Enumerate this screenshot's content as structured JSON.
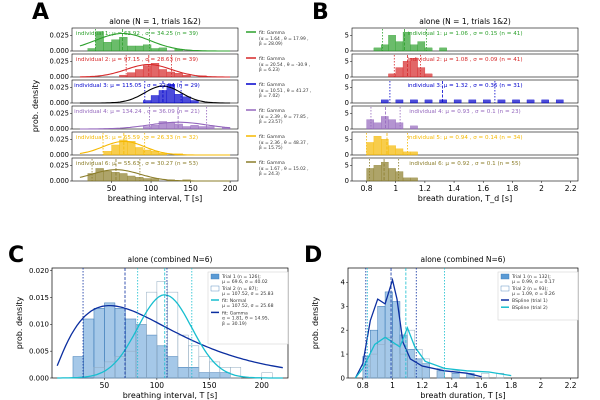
{
  "chart_data": [
    {
      "id": "A",
      "panel_letter": "A",
      "type": "bar",
      "title": "alone (N = 1, trials 1&2)",
      "xlabel": "breathing interval, T [s]",
      "ylabel": "prob. density",
      "xlim": [
        0,
        210
      ],
      "xticks": [
        50,
        100,
        150,
        200
      ],
      "ylim": [
        0,
        0.035
      ],
      "yticks": [
        0.0,
        0.025
      ],
      "ytick_labels": [
        "0.000",
        "0.025"
      ],
      "rows": [
        {
          "label": "individual 1: μ = 63.92 , σ = 34.25 (n = 39)",
          "color": "#2ca02c",
          "mean": 63.92,
          "sd": 34.25,
          "bins": [
            [
              20,
              0.004
            ],
            [
              30,
              0.031
            ],
            [
              40,
              0.014
            ],
            [
              50,
              0.018
            ],
            [
              60,
              0.022
            ],
            [
              70,
              0.008
            ],
            [
              80,
              0.008
            ],
            [
              90,
              0.01
            ],
            [
              100,
              0.004
            ],
            [
              110,
              0.005
            ],
            [
              130,
              0.003
            ]
          ],
          "fit": {
            "label": "fit: Gamma",
            "params": "(α = 1.64 , θ = 17.99 ,\nβ = 28.09)"
          }
        },
        {
          "label": "individual 2: μ = 97.15 , σ = 28.63 (n = 39)",
          "color": "#d62728",
          "mean": 97.15,
          "sd": 28.63,
          "bins": [
            [
              60,
              0.003
            ],
            [
              70,
              0.007
            ],
            [
              80,
              0.012
            ],
            [
              90,
              0.018
            ],
            [
              100,
              0.022
            ],
            [
              110,
              0.012
            ],
            [
              120,
              0.008
            ],
            [
              130,
              0.006
            ],
            [
              140,
              0.003
            ],
            [
              160,
              0.002
            ]
          ],
          "fit": {
            "label": "fit: Gamma",
            "params": "(α = 20.54 , θ = -30.9 ,\nβ = 6.23)"
          }
        },
        {
          "label": "individual 3: μ = 115.05 , σ = 22.94 (n = 29)",
          "color": "#0000cc",
          "mean": 115.05,
          "sd": 22.94,
          "bins": [
            [
              90,
              0.004
            ],
            [
              100,
              0.012
            ],
            [
              110,
              0.02
            ],
            [
              120,
              0.03
            ],
            [
              130,
              0.014
            ],
            [
              140,
              0.01
            ],
            [
              150,
              0.004
            ]
          ],
          "fit": {
            "label": "fit: Gamma",
            "params": "(α = 10.51 , θ = 41.27 ,\nβ = 7.02)"
          }
        },
        {
          "label": "individual 4: μ = 134.24 , σ = 36.09 (n = 21)",
          "color": "#9467bd",
          "mean": 134.24,
          "sd": 36.09,
          "bins": [
            [
              90,
              0.004
            ],
            [
              100,
              0.006
            ],
            [
              110,
              0.012
            ],
            [
              120,
              0.01
            ],
            [
              130,
              0.008
            ],
            [
              140,
              0.004
            ],
            [
              150,
              0.006
            ],
            [
              160,
              0.004
            ],
            [
              170,
              0.004
            ],
            [
              190,
              0.002
            ]
          ],
          "fit": {
            "label": "fit: Gamma",
            "params": "(α = 2.39 , θ = 77.85 ,\nβ = 23.57)"
          }
        },
        {
          "label": "individual 5: μ = 65.59 , σ = 26.33 (n = 32)",
          "color": "#f5b800",
          "mean": 65.59,
          "sd": 26.33,
          "bins": [
            [
              40,
              0.006
            ],
            [
              50,
              0.016
            ],
            [
              60,
              0.024
            ],
            [
              70,
              0.022
            ],
            [
              80,
              0.012
            ],
            [
              90,
              0.008
            ],
            [
              100,
              0.006
            ],
            [
              110,
              0.003
            ],
            [
              130,
              0.002
            ]
          ],
          "fit": {
            "label": "fit: Gamma",
            "params": "(α = 2.36 , θ = 48.37 ,\nβ = 15.75)"
          }
        },
        {
          "label": "individual 6: μ = 55.63 , σ = 30.27 (n = 53)",
          "color": "#8b7d2a",
          "mean": 55.63,
          "sd": 30.27,
          "bins": [
            [
              20,
              0.012
            ],
            [
              30,
              0.02
            ],
            [
              40,
              0.016
            ],
            [
              50,
              0.014
            ],
            [
              60,
              0.012
            ],
            [
              70,
              0.008
            ],
            [
              80,
              0.006
            ],
            [
              90,
              0.004
            ],
            [
              100,
              0.004
            ],
            [
              120,
              0.002
            ],
            [
              140,
              0.002
            ]
          ],
          "fit": {
            "label": "fit: Gamma",
            "params": "(α = 1.67 , θ = 15.02 ,\nβ = 24.3)"
          }
        }
      ]
    },
    {
      "id": "B",
      "panel_letter": "B",
      "type": "bar",
      "title": "alone (N = 1, trials 1&2)",
      "xlabel": "breath duration, T_d [s]",
      "xlim": [
        0.7,
        2.25
      ],
      "xticks": [
        0.8,
        1.0,
        1.2,
        1.4,
        1.6,
        1.8,
        2.0,
        2.2
      ],
      "ylim": [
        0,
        7
      ],
      "yticks": [
        0,
        5
      ],
      "rows": [
        {
          "label": "individual 1: μ = 1.06 , σ = 0.15 (n = 41)",
          "color": "#2ca02c",
          "mean": 1.06,
          "sd": 0.15,
          "bins": [
            [
              0.85,
              1
            ],
            [
              0.9,
              2
            ],
            [
              0.95,
              5
            ],
            [
              1.0,
              3
            ],
            [
              1.05,
              6
            ],
            [
              1.1,
              2
            ],
            [
              1.15,
              3
            ],
            [
              1.2,
              1
            ],
            [
              1.3,
              1
            ]
          ]
        },
        {
          "label": "individual 2: μ = 1.08 , σ = 0.09 (n = 41)",
          "color": "#d62728",
          "mean": 1.08,
          "sd": 0.09,
          "bins": [
            [
              0.95,
              1
            ],
            [
              1.0,
              3
            ],
            [
              1.05,
              5
            ],
            [
              1.1,
              6
            ],
            [
              1.15,
              3
            ],
            [
              1.2,
              1
            ]
          ]
        },
        {
          "label": "individual 3: μ = 1.32 , σ = 0.36 (n = 31)",
          "color": "#0000cc",
          "mean": 1.32,
          "sd": 0.36,
          "bins": [
            [
              0.9,
              1
            ],
            [
              1.0,
              1
            ],
            [
              1.1,
              1
            ],
            [
              1.2,
              1
            ],
            [
              1.3,
              1
            ],
            [
              1.4,
              1
            ],
            [
              1.5,
              1
            ],
            [
              1.6,
              1
            ],
            [
              1.7,
              1
            ],
            [
              1.8,
              1
            ],
            [
              1.9,
              1
            ],
            [
              2.0,
              1
            ],
            [
              2.1,
              1
            ]
          ]
        },
        {
          "label": "individual 4: μ = 0.93 , σ = 0.1 (n = 23)",
          "color": "#9467bd",
          "mean": 0.93,
          "sd": 0.1,
          "bins": [
            [
              0.8,
              3
            ],
            [
              0.85,
              2
            ],
            [
              0.9,
              4
            ],
            [
              0.95,
              3
            ],
            [
              1.0,
              2
            ],
            [
              1.1,
              1
            ]
          ]
        },
        {
          "label": "individual 5: μ = 0.94 , σ = 0.14 (n = 34)",
          "color": "#f5b800",
          "mean": 0.94,
          "sd": 0.14,
          "bins": [
            [
              0.8,
              4
            ],
            [
              0.85,
              6
            ],
            [
              0.9,
              5
            ],
            [
              0.95,
              3
            ],
            [
              1.0,
              2
            ],
            [
              1.05,
              1
            ],
            [
              1.1,
              1
            ]
          ]
        },
        {
          "label": "individual 6: μ = 0.92 , σ = 0.1 (n = 55)",
          "color": "#8b7d2a",
          "mean": 0.92,
          "sd": 0.1,
          "bins": [
            [
              0.8,
              4
            ],
            [
              0.85,
              5
            ],
            [
              0.9,
              6
            ],
            [
              0.95,
              4
            ],
            [
              1.0,
              3
            ],
            [
              1.05,
              1
            ],
            [
              1.1,
              1
            ]
          ]
        }
      ]
    },
    {
      "id": "C",
      "panel_letter": "C",
      "type": "bar",
      "title": "alone (combined N=6)",
      "xlabel": "breathing interval, T [s]",
      "ylabel": "prob. density",
      "xlim": [
        0,
        225
      ],
      "xticks": [
        50,
        100,
        150,
        200
      ],
      "ylim": [
        0,
        0.0205
      ],
      "yticks": [
        0.0,
        0.005,
        0.01,
        0.015,
        0.02
      ],
      "ytick_labels": [
        "0.000",
        "0.005",
        "0.010",
        "0.015",
        "0.020"
      ],
      "series": [
        {
          "name": "Trial 1",
          "legend": "Trial 1 (n = 126);\nμ = 69.6, σ = 40.02",
          "color": "#5b9bd5",
          "bins": [
            [
              20,
              0.004
            ],
            [
              30,
              0.011
            ],
            [
              40,
              0.013
            ],
            [
              50,
              0.014
            ],
            [
              60,
              0.013
            ],
            [
              70,
              0.011
            ],
            [
              80,
              0.01
            ],
            [
              90,
              0.008
            ],
            [
              100,
              0.006
            ],
            [
              110,
              0.004
            ],
            [
              120,
              0.002
            ],
            [
              130,
              0.002
            ],
            [
              140,
              0.001
            ],
            [
              150,
              0.001
            ],
            [
              160,
              0.001
            ]
          ]
        },
        {
          "name": "Trial 2",
          "legend": "Trial 2 (n = 87);\nμ = 107.52, σ = 25.83",
          "color": "#9ecae1",
          "bins": [
            [
              40,
              0.002
            ],
            [
              50,
              0.003
            ],
            [
              60,
              0.004
            ],
            [
              70,
              0.005
            ],
            [
              80,
              0.01
            ],
            [
              90,
              0.016
            ],
            [
              100,
              0.018
            ],
            [
              110,
              0.016
            ],
            [
              120,
              0.008
            ],
            [
              130,
              0.006
            ],
            [
              140,
              0.004
            ],
            [
              150,
              0.003
            ],
            [
              160,
              0.002
            ],
            [
              170,
              0.002
            ],
            [
              200,
              0.001
            ]
          ]
        }
      ],
      "fits": [
        {
          "label": "fit: Normal\nμ = 107.52, σ = 25.68",
          "color": "#17becf"
        },
        {
          "label": "fit: Gamma\nα = 1.81, θ = 14.95,\nβ = 30.19)",
          "color": "#0b2ea0"
        }
      ]
    },
    {
      "id": "D",
      "panel_letter": "D",
      "type": "bar",
      "title": "alone (combined N=6)",
      "xlabel": "breath duration, T [s]",
      "ylabel": "prob. density",
      "xlim": [
        0.7,
        2.25
      ],
      "xticks": [
        0.8,
        1.0,
        1.2,
        1.4,
        1.6,
        1.8,
        2.0,
        2.2
      ],
      "ylim": [
        0,
        4.6
      ],
      "yticks": [
        0,
        1,
        2,
        3,
        4
      ],
      "series": [
        {
          "name": "Trial 1",
          "legend": "Trial 1 (n = 132);\nμ = 0.99, σ = 0.17",
          "color": "#5b9bd5",
          "bins": [
            [
              0.8,
              0.9
            ],
            [
              0.85,
              2.0
            ],
            [
              0.9,
              3.0
            ],
            [
              0.95,
              3.6
            ],
            [
              1.0,
              3.2
            ],
            [
              1.05,
              1.8
            ],
            [
              1.1,
              1.2
            ],
            [
              1.15,
              0.8
            ],
            [
              1.2,
              0.6
            ],
            [
              1.3,
              0.3
            ],
            [
              1.4,
              0.2
            ],
            [
              1.5,
              0.2
            ]
          ]
        },
        {
          "name": "Trial 2",
          "legend": "Trial 2 (n = 93);\nμ = 1.09, σ = 0.26",
          "color": "#9ecae1",
          "bins": [
            [
              0.8,
              0.5
            ],
            [
              0.85,
              1.0
            ],
            [
              0.9,
              1.4
            ],
            [
              0.95,
              1.7
            ],
            [
              1.0,
              1.4
            ],
            [
              1.05,
              1.0
            ],
            [
              1.1,
              2.0
            ],
            [
              1.15,
              1.2
            ],
            [
              1.2,
              0.8
            ],
            [
              1.3,
              0.4
            ],
            [
              1.4,
              0.3
            ],
            [
              1.6,
              0.2
            ],
            [
              1.7,
              0.2
            ]
          ]
        }
      ],
      "fits": [
        {
          "label": "BSpline (trial 1)",
          "color": "#0b2ea0"
        },
        {
          "label": "BSpline (trial 2)",
          "color": "#17becf"
        }
      ]
    }
  ]
}
